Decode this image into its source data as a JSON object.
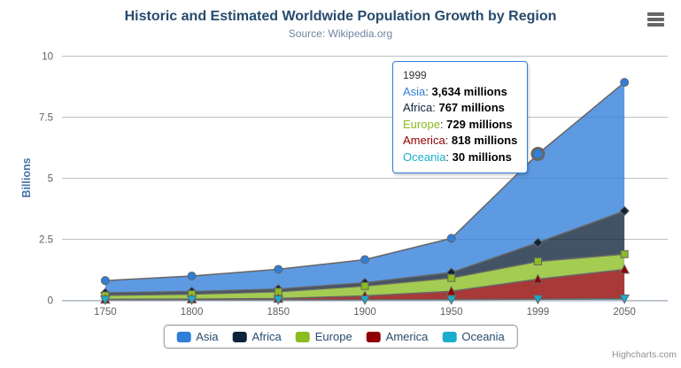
{
  "title": "Historic and Estimated Worldwide Population Growth by Region",
  "subtitle": "Source: Wikipedia.org",
  "credits": "Highcharts.com",
  "export_menu_icon": "hamburger-menu-icon",
  "colors": {
    "title": "#274b6d",
    "subtitle": "#6d869f",
    "axis_labels": "#606060",
    "y_axis_title": "#4572a7",
    "gridline": "#c0c0c0",
    "axis_line": "#c0d0e0",
    "series_line": "#666666",
    "tooltip_border": "#2f7ed8",
    "legend_border": "#909090",
    "legend_text": "#274b6d",
    "credits_text": "#909090"
  },
  "chart_data": {
    "type": "area",
    "stacking": "normal",
    "title": "Historic and Estimated Worldwide Population Growth by Region",
    "subtitle": "Source: Wikipedia.org",
    "categories": [
      "1750",
      "1800",
      "1850",
      "1900",
      "1950",
      "1999",
      "2050"
    ],
    "series": [
      {
        "name": "Asia",
        "color": "#2f7ed8",
        "marker": "circle",
        "values": [
          502,
          635,
          809,
          947,
          1402,
          3634,
          5268
        ]
      },
      {
        "name": "Africa",
        "color": "#0d233a",
        "marker": "diamond",
        "values": [
          106,
          107,
          111,
          133,
          221,
          767,
          1766
        ]
      },
      {
        "name": "Europe",
        "color": "#8bbc21",
        "marker": "square",
        "values": [
          163,
          203,
          276,
          408,
          547,
          729,
          628
        ]
      },
      {
        "name": "America",
        "color": "#910000",
        "marker": "triangle",
        "values": [
          18,
          31,
          54,
          156,
          339,
          818,
          1201
        ]
      },
      {
        "name": "Oceania",
        "color": "#1aadce",
        "marker": "triangle-down",
        "values": [
          2,
          2,
          2,
          6,
          13,
          30,
          46
        ]
      }
    ],
    "values_unit": "millions",
    "xlabel": "",
    "ylabel": "Billions",
    "ylim": [
      0,
      10
    ],
    "yticks": [
      0,
      2.5,
      5,
      7.5,
      10
    ],
    "ytick_labels": [
      "0",
      "2.5",
      "5",
      "7.5",
      "10"
    ],
    "grid": true,
    "legend_position": "bottom",
    "hover": {
      "series": "Asia",
      "category": "1999"
    }
  },
  "tooltip": {
    "header": "1999",
    "rows": [
      {
        "name": "Asia",
        "color": "#2f7ed8",
        "value": "3,634 millions"
      },
      {
        "name": "Africa",
        "color": "#0d233a",
        "value": "767 millions"
      },
      {
        "name": "Europe",
        "color": "#8bbc21",
        "value": "729 millions"
      },
      {
        "name": "America",
        "color": "#910000",
        "value": "818 millions"
      },
      {
        "name": "Oceania",
        "color": "#1aadce",
        "value": "30 millions"
      }
    ]
  }
}
